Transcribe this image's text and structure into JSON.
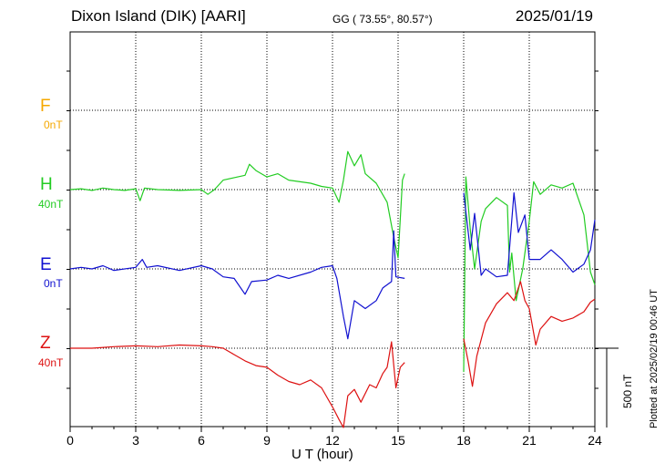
{
  "header": {
    "title": "Dixon Island (DIK)  [AARI]",
    "coords": "GG ( 73.55°,  80.57°)",
    "date": "2025/01/19"
  },
  "components": [
    {
      "letter": "F",
      "base": "0nT",
      "color": "#f5a800"
    },
    {
      "letter": "H",
      "base": "40nT",
      "color": "#22cc22"
    },
    {
      "letter": "E",
      "base": "0nT",
      "color": "#1010d0"
    },
    {
      "letter": "Z",
      "base": "40nT",
      "color": "#dd1111"
    }
  ],
  "footer": {
    "xlabel": "U T (hour)",
    "scale_label": "500 nT",
    "plotted": "Plotted at 2025/02/19 00:46 UT"
  },
  "chart_data": {
    "type": "line",
    "xlabel": "U T (hour)",
    "xlim": [
      0,
      24
    ],
    "xticks": [
      0,
      3,
      6,
      9,
      12,
      15,
      18,
      21,
      24
    ],
    "grid": true,
    "scale_nT": 500,
    "series": [
      {
        "name": "H",
        "unit": "nT",
        "gaps": [
          [
            15.3,
            18.0
          ]
        ],
        "points": [
          [
            0,
            0
          ],
          [
            0.5,
            5
          ],
          [
            1,
            -5
          ],
          [
            1.5,
            10
          ],
          [
            2,
            0
          ],
          [
            2.5,
            -5
          ],
          [
            3,
            5
          ],
          [
            3.2,
            -70
          ],
          [
            3.4,
            10
          ],
          [
            4,
            0
          ],
          [
            5,
            -5
          ],
          [
            6,
            0
          ],
          [
            6.3,
            -30
          ],
          [
            6.6,
            0
          ],
          [
            7,
            60
          ],
          [
            7.5,
            75
          ],
          [
            8,
            90
          ],
          [
            8.2,
            160
          ],
          [
            8.5,
            120
          ],
          [
            9,
            80
          ],
          [
            9.5,
            100
          ],
          [
            10,
            60
          ],
          [
            11,
            40
          ],
          [
            11.5,
            20
          ],
          [
            12,
            10
          ],
          [
            12.3,
            -80
          ],
          [
            12.5,
            60
          ],
          [
            12.7,
            240
          ],
          [
            13,
            150
          ],
          [
            13.3,
            220
          ],
          [
            13.5,
            100
          ],
          [
            14,
            40
          ],
          [
            14.5,
            -80
          ],
          [
            14.8,
            -300
          ],
          [
            15,
            -430
          ],
          [
            15.2,
            60
          ],
          [
            15.3,
            100
          ],
          [
            18,
            -1150
          ],
          [
            18.1,
            80
          ],
          [
            18.3,
            -250
          ],
          [
            18.5,
            -500
          ],
          [
            18.8,
            -200
          ],
          [
            19,
            -120
          ],
          [
            19.5,
            -50
          ],
          [
            20,
            -100
          ],
          [
            20.1,
            -520
          ],
          [
            20.2,
            -400
          ],
          [
            20.4,
            -700
          ],
          [
            20.7,
            -500
          ],
          [
            21,
            -200
          ],
          [
            21.2,
            50
          ],
          [
            21.5,
            -30
          ],
          [
            22,
            30
          ],
          [
            22.5,
            10
          ],
          [
            23,
            40
          ],
          [
            23.5,
            -160
          ],
          [
            23.8,
            -520
          ],
          [
            24,
            -600
          ]
        ]
      },
      {
        "name": "E",
        "unit": "nT",
        "gaps": [
          [
            15.3,
            18.0
          ]
        ],
        "points": [
          [
            0,
            0
          ],
          [
            0.5,
            10
          ],
          [
            1,
            0
          ],
          [
            1.5,
            20
          ],
          [
            2,
            -10
          ],
          [
            3,
            10
          ],
          [
            3.3,
            60
          ],
          [
            3.5,
            10
          ],
          [
            4,
            20
          ],
          [
            5,
            -10
          ],
          [
            6,
            20
          ],
          [
            6.5,
            0
          ],
          [
            7,
            -50
          ],
          [
            7.5,
            -60
          ],
          [
            8,
            -160
          ],
          [
            8.3,
            -80
          ],
          [
            9,
            -70
          ],
          [
            9.5,
            -40
          ],
          [
            10,
            -60
          ],
          [
            11,
            -20
          ],
          [
            11.5,
            10
          ],
          [
            12,
            20
          ],
          [
            12.2,
            -60
          ],
          [
            12.5,
            -300
          ],
          [
            12.7,
            -440
          ],
          [
            13,
            -200
          ],
          [
            13.5,
            -250
          ],
          [
            14,
            -200
          ],
          [
            14.3,
            -120
          ],
          [
            14.7,
            -80
          ],
          [
            14.8,
            240
          ],
          [
            14.9,
            -50
          ],
          [
            15.3,
            -60
          ],
          [
            18,
            480
          ],
          [
            18.3,
            120
          ],
          [
            18.5,
            350
          ],
          [
            18.8,
            -40
          ],
          [
            19,
            0
          ],
          [
            19.5,
            -50
          ],
          [
            20,
            -40
          ],
          [
            20.3,
            480
          ],
          [
            20.5,
            230
          ],
          [
            20.8,
            340
          ],
          [
            21,
            60
          ],
          [
            21.5,
            60
          ],
          [
            22,
            120
          ],
          [
            22.5,
            60
          ],
          [
            23,
            -20
          ],
          [
            23.5,
            30
          ],
          [
            23.8,
            120
          ],
          [
            24,
            310
          ]
        ]
      },
      {
        "name": "Z",
        "unit": "nT",
        "gaps": [
          [
            15.3,
            18.0
          ]
        ],
        "points": [
          [
            0,
            0
          ],
          [
            1,
            0
          ],
          [
            2,
            10
          ],
          [
            3,
            15
          ],
          [
            4,
            10
          ],
          [
            5,
            20
          ],
          [
            6,
            15
          ],
          [
            6.5,
            10
          ],
          [
            7,
            0
          ],
          [
            7.5,
            -40
          ],
          [
            8,
            -80
          ],
          [
            8.5,
            -110
          ],
          [
            9,
            -120
          ],
          [
            9.5,
            -170
          ],
          [
            10,
            -210
          ],
          [
            10.5,
            -230
          ],
          [
            11,
            -200
          ],
          [
            11.5,
            -250
          ],
          [
            12,
            -370
          ],
          [
            12.3,
            -450
          ],
          [
            12.5,
            -500
          ],
          [
            12.7,
            -300
          ],
          [
            13,
            -260
          ],
          [
            13.3,
            -340
          ],
          [
            13.7,
            -230
          ],
          [
            14,
            -250
          ],
          [
            14.3,
            -160
          ],
          [
            14.5,
            -120
          ],
          [
            14.7,
            40
          ],
          [
            14.9,
            -250
          ],
          [
            15.1,
            -120
          ],
          [
            15.3,
            -90
          ],
          [
            18,
            60
          ],
          [
            18.2,
            -80
          ],
          [
            18.4,
            -240
          ],
          [
            18.6,
            -50
          ],
          [
            19,
            160
          ],
          [
            19.5,
            280
          ],
          [
            20,
            350
          ],
          [
            20.3,
            300
          ],
          [
            20.6,
            420
          ],
          [
            20.8,
            300
          ],
          [
            21,
            250
          ],
          [
            21.3,
            20
          ],
          [
            21.5,
            120
          ],
          [
            22,
            200
          ],
          [
            22.5,
            170
          ],
          [
            23,
            190
          ],
          [
            23.5,
            230
          ],
          [
            23.8,
            290
          ],
          [
            24,
            310
          ]
        ]
      }
    ]
  }
}
